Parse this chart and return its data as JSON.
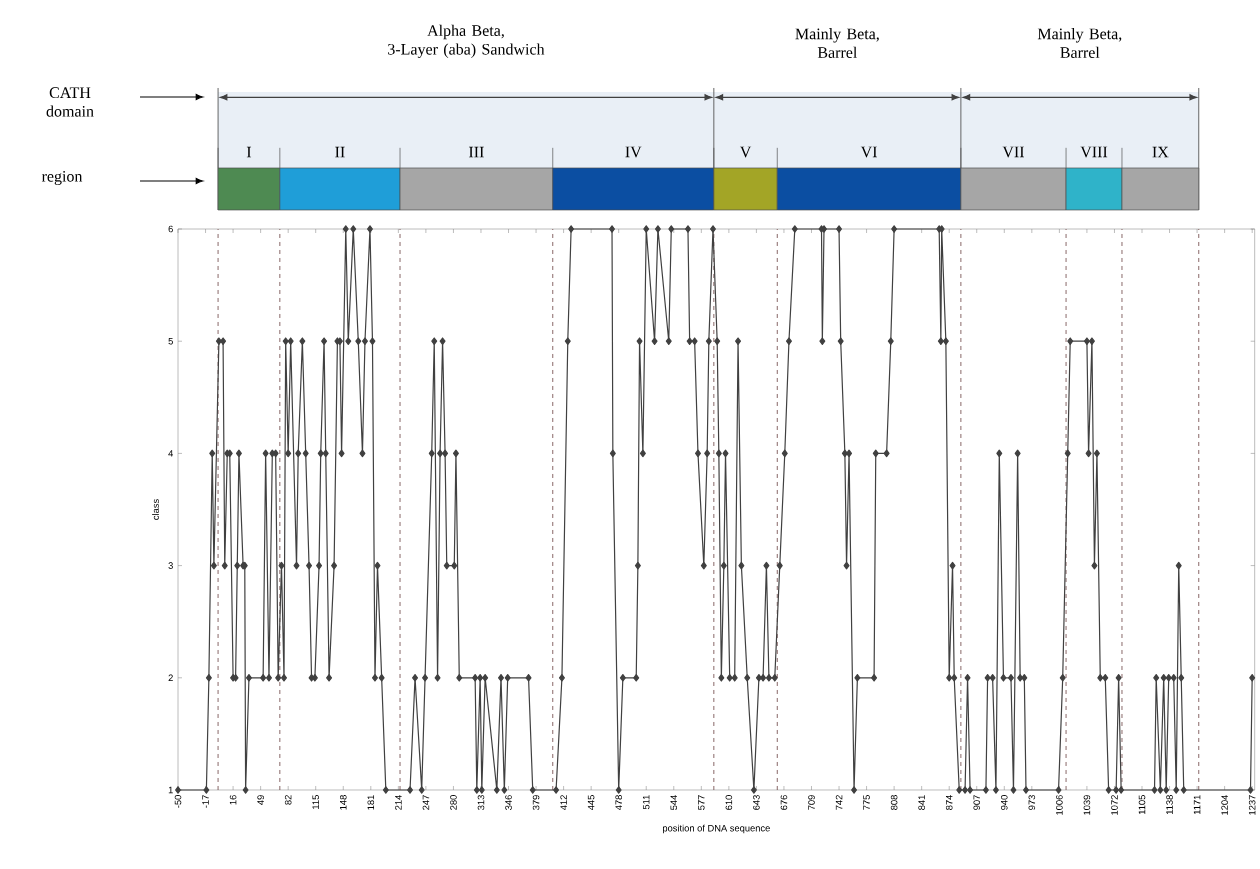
{
  "chart_data": [
    {
      "type": "other",
      "categories": [
        "Alpha Beta,\n3-Layer (aba) Sandwich",
        "Mainly Beta,\nBarrel",
        "Mainly Beta,\nBarrel"
      ],
      "annotations": [
        "CATH\ndomain"
      ]
    },
    {
      "type": "other",
      "categories": [
        "I",
        "II",
        "III",
        "IV",
        "V",
        "VI",
        "VII",
        "VIII",
        "IX"
      ],
      "colors": [
        "#4e8a52",
        "#1f9ed8",
        "#a6a6a6",
        "#0b4ea2",
        "#a3a526",
        "#0b4ea2",
        "#a6a6a6",
        "#2fb3c9",
        "#a6a6a6"
      ],
      "annotations": [
        "region"
      ]
    },
    {
      "type": "line",
      "xlabel": "position of DNA sequence",
      "ylabel": "class",
      "xlim": [
        -50,
        1240
      ],
      "ylim": [
        1,
        6
      ],
      "xticks": [
        -50,
        -17,
        16,
        49,
        82,
        115,
        148,
        181,
        214,
        247,
        280,
        313,
        346,
        379,
        412,
        445,
        478,
        511,
        544,
        577,
        610,
        643,
        676,
        709,
        742,
        775,
        808,
        841,
        874,
        907,
        940,
        973,
        1006,
        1039,
        1072,
        1105,
        1138,
        1171,
        1204,
        1237
      ],
      "yticks": [
        1,
        2,
        3,
        4,
        5,
        6
      ],
      "marker": "diamond",
      "line_style": "solid",
      "series": [
        {
          "color": "#404040",
          "x": [
            -50,
            -16,
            -13,
            -9,
            -7,
            -1,
            4,
            6,
            9,
            12,
            16,
            19,
            21,
            23,
            28,
            30,
            31,
            35,
            52,
            55,
            59,
            63,
            67,
            70,
            74,
            77,
            79,
            82,
            85,
            92,
            94,
            99,
            103,
            107,
            110,
            114,
            119,
            121,
            125,
            127,
            131,
            137,
            141,
            144,
            146,
            151,
            154,
            160,
            166,
            171,
            174,
            180,
            183,
            186,
            189,
            194,
            199,
            228,
            234,
            242,
            246,
            254,
            257,
            261,
            264,
            267,
            270,
            272,
            281,
            283,
            287,
            306,
            308,
            312,
            314,
            318,
            332,
            337,
            341,
            345,
            370,
            375,
            403,
            410,
            417,
            421,
            470,
            471,
            478,
            483,
            499,
            501,
            503,
            507,
            511,
            521,
            525,
            538,
            541,
            561,
            563,
            569,
            573,
            580,
            584,
            586,
            591,
            596,
            598,
            601,
            604,
            606,
            611,
            617,
            621,
            625,
            632,
            640,
            646,
            651,
            655,
            658,
            665,
            671,
            677,
            682,
            689,
            721,
            722,
            724,
            742,
            744,
            749,
            751,
            754,
            760,
            764,
            784,
            786,
            799,
            804,
            808,
            862,
            864,
            865,
            870,
            874,
            878,
            880,
            886,
            893,
            896,
            899,
            918,
            920,
            926,
            930,
            934,
            939,
            948,
            951,
            956,
            959,
            964,
            966,
            1005,
            1010,
            1016,
            1019,
            1039,
            1041,
            1045,
            1048,
            1051,
            1055,
            1061,
            1065,
            1074,
            1077,
            1080,
            1120,
            1122,
            1127,
            1131,
            1134,
            1137,
            1143,
            1146,
            1149,
            1152,
            1155,
            1235,
            1237
          ],
          "values": [
            1,
            1,
            2,
            4,
            3,
            5,
            5,
            3,
            4,
            4,
            2,
            2,
            3,
            4,
            3,
            3,
            1,
            2,
            2,
            4,
            2,
            4,
            4,
            2,
            3,
            2,
            5,
            4,
            5,
            3,
            4,
            5,
            4,
            3,
            2,
            2,
            3,
            4,
            5,
            4,
            2,
            3,
            5,
            5,
            4,
            6,
            5,
            6,
            5,
            4,
            5,
            6,
            5,
            2,
            3,
            2,
            1,
            1,
            2,
            1,
            2,
            4,
            5,
            2,
            4,
            5,
            4,
            3,
            3,
            4,
            2,
            2,
            1,
            2,
            1,
            2,
            1,
            2,
            1,
            2,
            2,
            1,
            1,
            2,
            5,
            6,
            6,
            4,
            1,
            2,
            2,
            3,
            5,
            4,
            6,
            5,
            6,
            5,
            6,
            6,
            5,
            5,
            4,
            3,
            4,
            5,
            6,
            5,
            4,
            2,
            3,
            4,
            2,
            2,
            5,
            3,
            2,
            1,
            2,
            2,
            3,
            2,
            2,
            3,
            4,
            5,
            6,
            6,
            5,
            6,
            6,
            5,
            4,
            3,
            4,
            1,
            2,
            2,
            4,
            4,
            5,
            6,
            6,
            5,
            6,
            5,
            2,
            3,
            2,
            1,
            1,
            2,
            1,
            1,
            2,
            2,
            1,
            4,
            2,
            2,
            1,
            4,
            2,
            2,
            1,
            1,
            2,
            4,
            5,
            5,
            4,
            5,
            3,
            4,
            2,
            2,
            1,
            1,
            2,
            1,
            1,
            2,
            1,
            2,
            1,
            2,
            2,
            1,
            3,
            2,
            1,
            1,
            2
          ]
        }
      ],
      "ref_lines": [
        {
          "axis": "x",
          "value": -2,
          "color": "#6a4040",
          "line_style": "dashed"
        },
        {
          "axis": "x",
          "value": 72,
          "color": "#6a4040",
          "line_style": "dashed"
        },
        {
          "axis": "x",
          "value": 216,
          "color": "#6a4040",
          "line_style": "dashed"
        },
        {
          "axis": "x",
          "value": 399,
          "color": "#6a4040",
          "line_style": "dashed"
        },
        {
          "axis": "x",
          "value": 592,
          "color": "#6a4040",
          "line_style": "dashed"
        },
        {
          "axis": "x",
          "value": 668,
          "color": "#6a4040",
          "line_style": "dashed"
        },
        {
          "axis": "x",
          "value": 888,
          "color": "#6a4040",
          "line_style": "dashed"
        },
        {
          "axis": "x",
          "value": 1014,
          "color": "#6a4040",
          "line_style": "dashed"
        },
        {
          "axis": "x",
          "value": 1081,
          "color": "#6a4040",
          "line_style": "dashed"
        },
        {
          "axis": "x",
          "value": 1173,
          "color": "#6a4040",
          "line_style": "dashed"
        }
      ]
    }
  ]
}
